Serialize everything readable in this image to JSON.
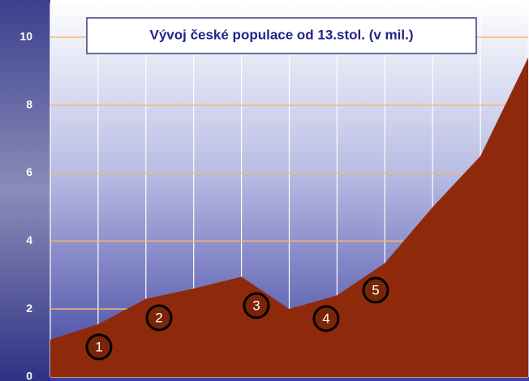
{
  "chart_data": {
    "type": "area",
    "title": "Vývoj české populace od 13.stol. (v mil.)",
    "categories": [
      null,
      null,
      null,
      null,
      null,
      null,
      null,
      null,
      null,
      null,
      null
    ],
    "values": [
      1.1,
      1.55,
      2.3,
      2.6,
      2.95,
      2.0,
      2.4,
      3.35,
      5.0,
      6.5,
      9.4
    ],
    "color": "#8e2a0b",
    "ylim": [
      0,
      11
    ],
    "yticks": [
      0,
      2,
      4,
      6,
      8,
      10
    ],
    "grid": true,
    "annotations": [
      "1",
      "2",
      "3",
      "4",
      "5"
    ]
  }
}
